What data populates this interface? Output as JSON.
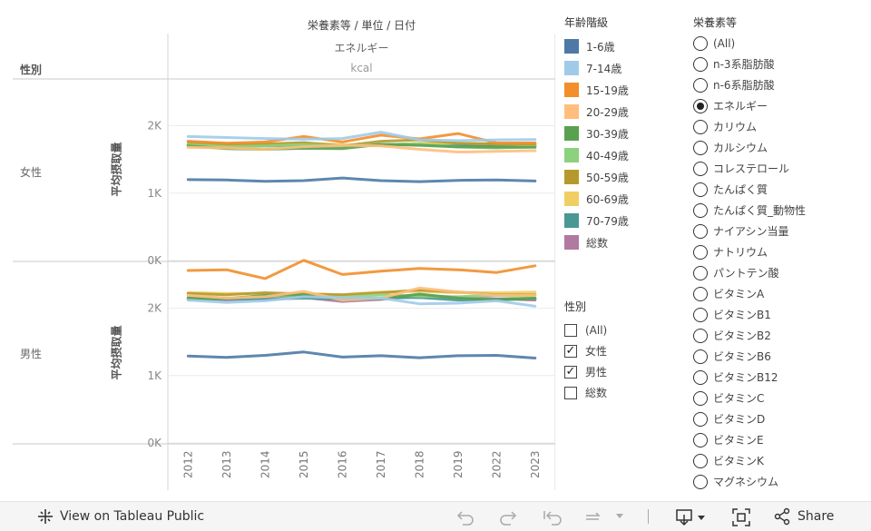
{
  "header": {
    "title": "栄養素等 / 単位 / 日付",
    "nutrient": "エネルギー",
    "unit": "kcal",
    "row_header": "性別"
  },
  "chart_data": {
    "type": "line",
    "title": "栄養素等 / 単位 / 日付",
    "ylabel": "平均摂取量",
    "xlabel": "",
    "categories": [
      "2012",
      "2013",
      "2014",
      "2015",
      "2016",
      "2017",
      "2018",
      "2019",
      "2022",
      "2023"
    ],
    "ylim": [
      0,
      2600
    ],
    "yticks": [
      {
        "value": 0,
        "label": "0K"
      },
      {
        "value": 1000,
        "label": "1K"
      },
      {
        "value": 2000,
        "label": "2K"
      }
    ],
    "panels": [
      {
        "name": "女性",
        "series": [
          {
            "name": "1-6歳",
            "values": [
              1200,
              1195,
              1175,
              1185,
              1225,
              1185,
              1170,
              1190,
              1195,
              1180
            ]
          },
          {
            "name": "7-14歳",
            "values": [
              1840,
              1825,
              1810,
              1800,
              1810,
              1905,
              1790,
              1780,
              1790,
              1795
            ]
          },
          {
            "name": "15-19歳",
            "values": [
              1770,
              1740,
              1760,
              1840,
              1760,
              1860,
              1805,
              1885,
              1745,
              1745
            ]
          },
          {
            "name": "20-29歳",
            "values": [
              1680,
              1670,
              1650,
              1690,
              1710,
              1700,
              1650,
              1610,
              1620,
              1630
            ]
          },
          {
            "name": "30-39歳",
            "values": [
              1700,
              1660,
              1650,
              1665,
              1660,
              1725,
              1710,
              1685,
              1680,
              1680
            ]
          },
          {
            "name": "40-49歳",
            "values": [
              1720,
              1690,
              1700,
              1720,
              1700,
              1720,
              1730,
              1685,
              1670,
              1690
            ]
          },
          {
            "name": "50-59歳",
            "values": [
              1760,
              1730,
              1730,
              1750,
              1700,
              1770,
              1790,
              1740,
              1730,
              1730
            ]
          },
          {
            "name": "60-69歳",
            "values": [
              1700,
              1720,
              1720,
              1740,
              1720,
              1700,
              1740,
              1740,
              1730,
              1720
            ]
          },
          {
            "name": "70-79歳",
            "values": [
              1710,
              1720,
              1700,
              1710,
              1700,
              1720,
              1730,
              1720,
              1715,
              1705
            ]
          },
          {
            "name": "総数",
            "values": [
              1720,
              1710,
              1710,
              1710,
              1700,
              1720,
              1730,
              1715,
              1705,
              1705
            ]
          }
        ]
      },
      {
        "name": "男性",
        "series": [
          {
            "name": "1-6歳",
            "values": [
              1290,
              1270,
              1300,
              1350,
              1275,
              1295,
              1265,
              1295,
              1300,
              1260
            ]
          },
          {
            "name": "7-14歳",
            "values": [
              2120,
              2085,
              2110,
              2170,
              2155,
              2150,
              2065,
              2075,
              2110,
              2030
            ]
          },
          {
            "name": "15-19歳",
            "values": [
              2560,
              2570,
              2440,
              2710,
              2500,
              2550,
              2590,
              2570,
              2530,
              2630
            ]
          },
          {
            "name": "20-29歳",
            "values": [
              2190,
              2150,
              2170,
              2250,
              2120,
              2150,
              2300,
              2240,
              2190,
              2190
            ]
          },
          {
            "name": "30-39歳",
            "values": [
              2150,
              2140,
              2190,
              2200,
              2130,
              2140,
              2210,
              2150,
              2120,
              2150
            ]
          },
          {
            "name": "40-49歳",
            "values": [
              2180,
              2150,
              2180,
              2190,
              2160,
              2200,
              2180,
              2170,
              2190,
              2150
            ]
          },
          {
            "name": "50-59歳",
            "values": [
              2220,
              2200,
              2230,
              2210,
              2200,
              2230,
              2270,
              2240,
              2200,
              2200
            ]
          },
          {
            "name": "60-69歳",
            "values": [
              2230,
              2220,
              2220,
              2220,
              2200,
              2240,
              2250,
              2230,
              2230,
              2240
            ]
          },
          {
            "name": "70-79歳",
            "values": [
              2130,
              2140,
              2130,
              2150,
              2140,
              2150,
              2160,
              2120,
              2130,
              2140
            ]
          },
          {
            "name": "総数",
            "values": [
              2150,
              2120,
              2140,
              2160,
              2100,
              2130,
              2190,
              2160,
              2140,
              2120
            ]
          }
        ]
      }
    ]
  },
  "colors": {
    "1-6歳": "#4e79a7",
    "7-14歳": "#a0cbe8",
    "15-19歳": "#f28e2b",
    "20-29歳": "#ffbe7d",
    "30-39歳": "#59a14f",
    "40-49歳": "#8cd17d",
    "50-59歳": "#b6992d",
    "60-69歳": "#f1ce63",
    "70-79歳": "#499894",
    "総数": "#b07aa1"
  },
  "age_legend": {
    "title": "年齢階級",
    "items": [
      "1-6歳",
      "7-14歳",
      "15-19歳",
      "20-29歳",
      "30-39歳",
      "40-49歳",
      "50-59歳",
      "60-69歳",
      "70-79歳",
      "総数"
    ]
  },
  "gender_filter": {
    "title": "性別",
    "items": [
      {
        "label": "(All)",
        "checked": false
      },
      {
        "label": "女性",
        "checked": true
      },
      {
        "label": "男性",
        "checked": true
      },
      {
        "label": "総数",
        "checked": false
      }
    ]
  },
  "nutrient_filter": {
    "title": "栄養素等",
    "items": [
      {
        "label": "(All)",
        "selected": false
      },
      {
        "label": "n-3系脂肪酸",
        "selected": false
      },
      {
        "label": "n-6系脂肪酸",
        "selected": false
      },
      {
        "label": "エネルギー",
        "selected": true
      },
      {
        "label": "カリウム",
        "selected": false
      },
      {
        "label": "カルシウム",
        "selected": false
      },
      {
        "label": "コレステロール",
        "selected": false
      },
      {
        "label": "たんぱく質",
        "selected": false
      },
      {
        "label": "たんぱく質_動物性",
        "selected": false
      },
      {
        "label": "ナイアシン当量",
        "selected": false
      },
      {
        "label": "ナトリウム",
        "selected": false
      },
      {
        "label": "パントテン酸",
        "selected": false
      },
      {
        "label": "ビタミンA",
        "selected": false
      },
      {
        "label": "ビタミンB1",
        "selected": false
      },
      {
        "label": "ビタミンB2",
        "selected": false
      },
      {
        "label": "ビタミンB6",
        "selected": false
      },
      {
        "label": "ビタミンB12",
        "selected": false
      },
      {
        "label": "ビタミンC",
        "selected": false
      },
      {
        "label": "ビタミンD",
        "selected": false
      },
      {
        "label": "ビタミンE",
        "selected": false
      },
      {
        "label": "ビタミンK",
        "selected": false
      },
      {
        "label": "マグネシウム",
        "selected": false
      }
    ]
  },
  "toolbar": {
    "view_label": "View on Tableau Public",
    "share_label": "Share",
    "view_icon": "tableau-logo-icon",
    "share_icon": "share-icon"
  }
}
